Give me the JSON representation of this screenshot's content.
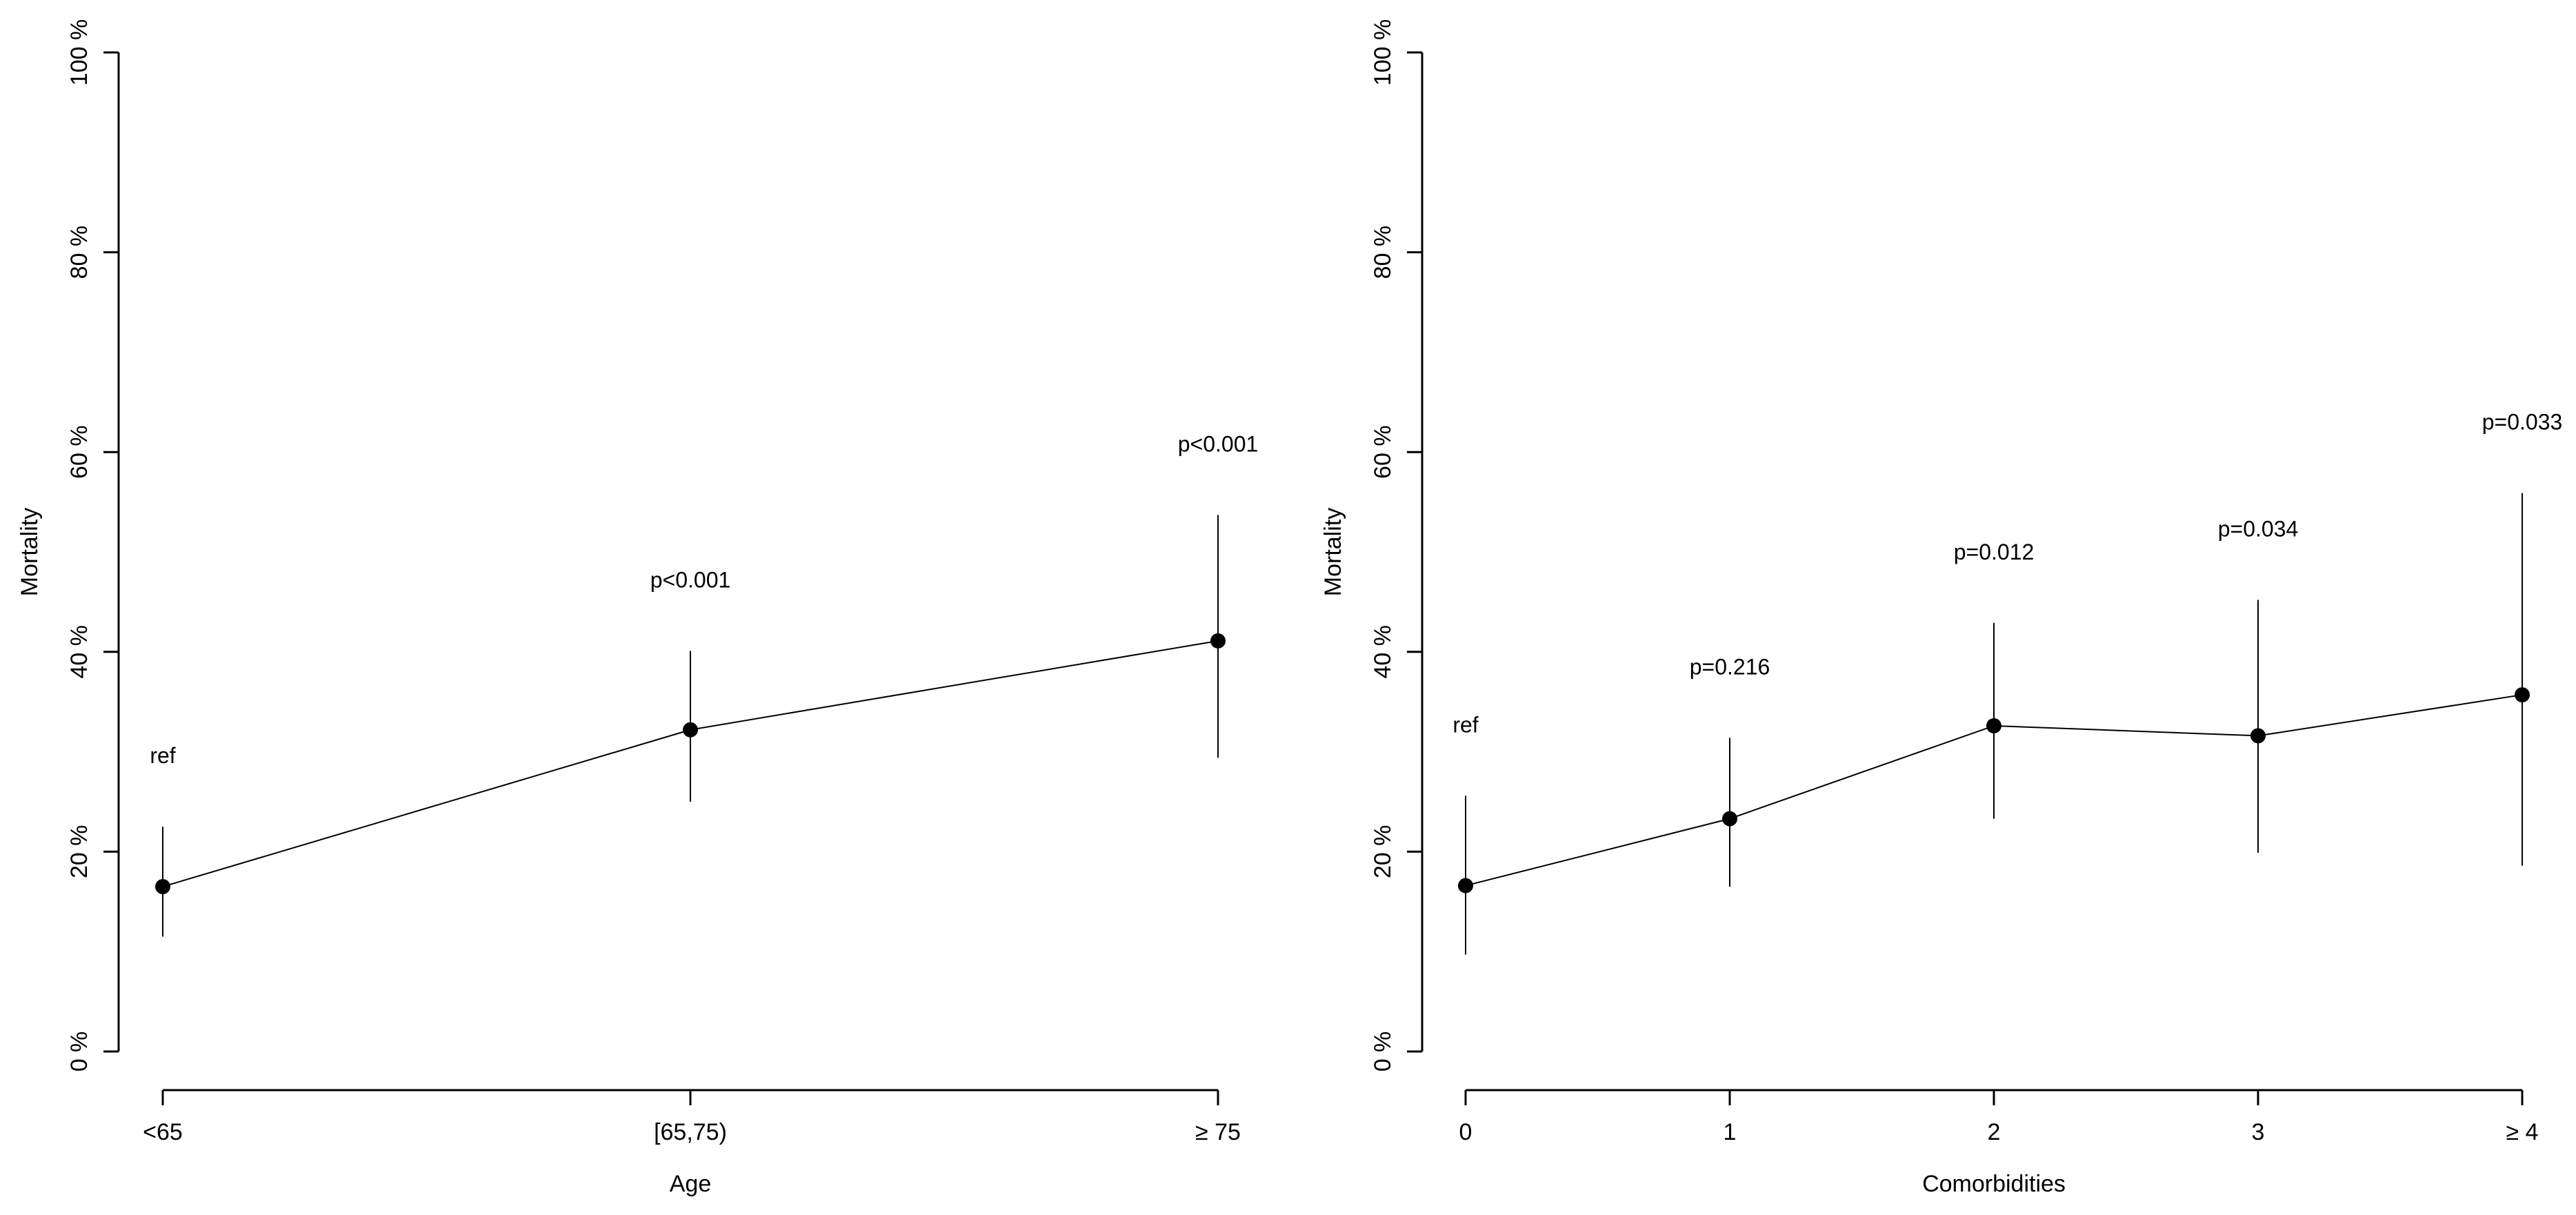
{
  "chart_data": [
    {
      "type": "line",
      "xlabel": "Age",
      "ylabel": "Mortality",
      "categories": [
        "<65",
        "[65,75)",
        "≥ 75"
      ],
      "values": [
        16.5,
        32.2,
        41.1
      ],
      "ci_lower": [
        11.5,
        25.0,
        29.4
      ],
      "ci_upper": [
        22.5,
        40.1,
        53.7
      ],
      "annotations": [
        "ref",
        "p<0.001",
        "p<0.001"
      ],
      "ylim": [
        0,
        100
      ],
      "yticks": [
        0,
        20,
        40,
        60,
        80,
        100
      ],
      "ytick_labels": [
        "0 %",
        "20 %",
        "40 %",
        "60 %",
        "80 %",
        "100 %"
      ],
      "grid": false,
      "colors": {
        "line": "#000000",
        "point": "#000000"
      }
    },
    {
      "type": "line",
      "xlabel": "Comorbidities",
      "ylabel": "Mortality",
      "categories": [
        "0",
        "1",
        "2",
        "3",
        "≥ 4"
      ],
      "values": [
        16.6,
        23.3,
        32.6,
        31.6,
        35.7
      ],
      "ci_lower": [
        9.7,
        16.5,
        23.3,
        19.9,
        18.6
      ],
      "ci_upper": [
        25.6,
        31.4,
        42.9,
        45.2,
        55.9
      ],
      "annotations": [
        "ref",
        "p=0.216",
        "p=0.012",
        "p=0.034",
        "p=0.033"
      ],
      "ylim": [
        0,
        100
      ],
      "yticks": [
        0,
        20,
        40,
        60,
        80,
        100
      ],
      "ytick_labels": [
        "0 %",
        "20 %",
        "40 %",
        "60 %",
        "80 %",
        "100 %"
      ],
      "grid": false,
      "colors": {
        "line": "#000000",
        "point": "#000000"
      }
    }
  ]
}
